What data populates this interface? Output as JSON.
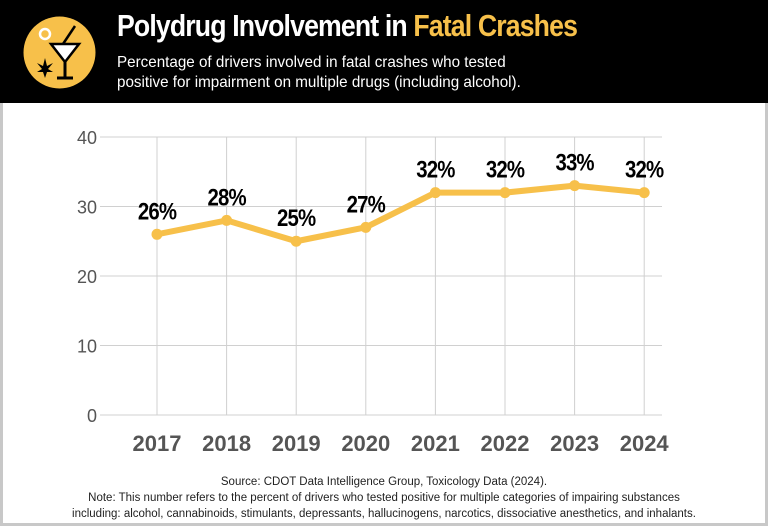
{
  "header": {
    "title_main": "Polydrug Involvement in ",
    "title_highlight": "Fatal Crashes",
    "subtitle_line1": "Percentage of drivers involved in fatal crashes who tested",
    "subtitle_line2": "positive for impairment on multiple drugs (including alcohol).",
    "logo_icon": "martini-cannabis-icon"
  },
  "colors": {
    "accent": "#f7c04a",
    "header_bg": "#000000",
    "grid": "#d0d0d0",
    "tick_text": "#555555"
  },
  "chart_data": {
    "type": "line",
    "title": "Polydrug Involvement in Fatal Crashes",
    "categories": [
      "2017",
      "2018",
      "2019",
      "2020",
      "2021",
      "2022",
      "2023",
      "2024"
    ],
    "values": [
      26,
      28,
      25,
      27,
      32,
      32,
      33,
      32
    ],
    "data_labels": [
      "26%",
      "28%",
      "25%",
      "27%",
      "32%",
      "32%",
      "33%",
      "32%"
    ],
    "ylim": [
      0,
      40
    ],
    "yticks": [
      0,
      10,
      20,
      30,
      40
    ],
    "grid": true,
    "xlabel": "",
    "ylabel": ""
  },
  "footer": {
    "source": "Source: CDOT Data Intelligence Group, Toxicology Data (2024).",
    "note_line1": "Note: This number refers to the percent of drivers who tested positive for multiple categories of impairing substances",
    "note_line2": "including: alcohol, cannabinoids, stimulants, depressants, hallucinogens, narcotics, dissociative anesthetics, and inhalants."
  }
}
